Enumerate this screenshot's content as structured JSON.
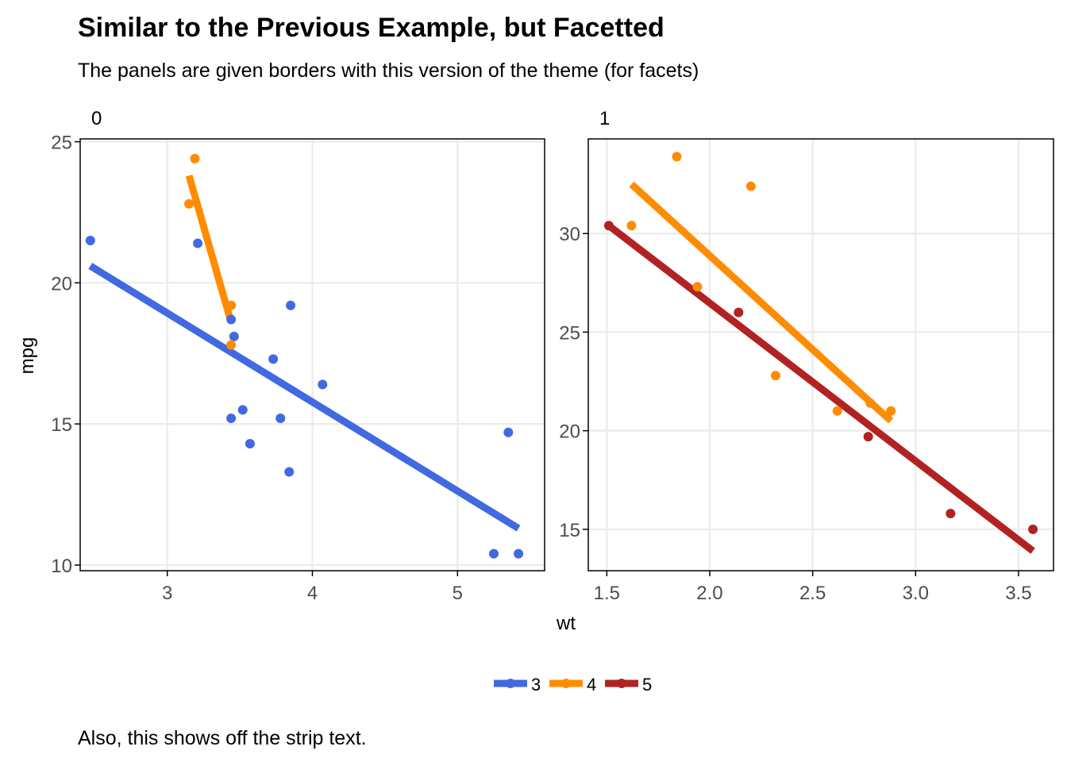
{
  "chart_data": {
    "type": "scatter",
    "title": "Similar to the Previous Example, but Facetted",
    "subtitle": "The panels are given borders with this version of the theme (for facets)",
    "caption": "Also, this shows off the strip text.",
    "xlabel": "wt",
    "ylabel": "mpg",
    "legend": {
      "placement": "bottom",
      "entries": [
        {
          "name": "3",
          "color": "#4169E1"
        },
        {
          "name": "4",
          "color": "#FF8C00"
        },
        {
          "name": "5",
          "color": "#B22222"
        }
      ]
    },
    "grid": true,
    "panels": [
      {
        "strip": "0",
        "xlim": [
          2.4,
          5.6
        ],
        "ylim": [
          9.8,
          25.1
        ],
        "x_ticks": [
          3,
          4,
          5
        ],
        "x_tick_labels": [
          "3",
          "4",
          "5"
        ],
        "y_ticks": [
          10,
          15,
          20,
          25
        ],
        "y_tick_labels": [
          "10",
          "15",
          "20",
          "25"
        ],
        "series": [
          {
            "name": "3",
            "color": "#4169E1",
            "points": [
              [
                2.47,
                21.5
              ],
              [
                3.21,
                21.4
              ],
              [
                3.44,
                18.7
              ],
              [
                3.46,
                18.1
              ],
              [
                3.57,
                14.3
              ],
              [
                3.44,
                15.2
              ],
              [
                3.52,
                15.5
              ],
              [
                3.78,
                15.2
              ],
              [
                3.84,
                13.3
              ],
              [
                3.85,
                19.2
              ],
              [
                3.73,
                17.3
              ],
              [
                4.07,
                16.4
              ],
              [
                5.25,
                10.4
              ],
              [
                5.42,
                10.4
              ],
              [
                5.35,
                14.7
              ]
            ],
            "fit": [
              [
                2.47,
                20.6
              ],
              [
                5.42,
                11.3
              ]
            ]
          },
          {
            "name": "4",
            "color": "#FF8C00",
            "points": [
              [
                3.15,
                22.8
              ],
              [
                3.19,
                24.4
              ],
              [
                3.44,
                19.2
              ],
              [
                3.44,
                17.8
              ]
            ],
            "fit": [
              [
                3.15,
                23.8
              ],
              [
                3.44,
                18.6
              ]
            ]
          }
        ]
      },
      {
        "strip": "1",
        "xlim": [
          1.41,
          3.67
        ],
        "ylim": [
          12.9,
          34.8
        ],
        "x_ticks": [
          1.5,
          2.0,
          2.5,
          3.0,
          3.5
        ],
        "x_tick_labels": [
          "1.5",
          "2.0",
          "2.5",
          "3.0",
          "3.5"
        ],
        "y_ticks": [
          15,
          20,
          25,
          30
        ],
        "y_tick_labels": [
          "15",
          "20",
          "25",
          "30"
        ],
        "series": [
          {
            "name": "4",
            "color": "#FF8C00",
            "points": [
              [
                1.62,
                30.4
              ],
              [
                1.84,
                33.9
              ],
              [
                2.2,
                32.4
              ],
              [
                1.94,
                27.3
              ],
              [
                2.32,
                22.8
              ],
              [
                2.62,
                21.0
              ],
              [
                2.78,
                21.4
              ],
              [
                2.88,
                21.0
              ]
            ],
            "fit": [
              [
                1.62,
                32.5
              ],
              [
                2.88,
                20.5
              ]
            ]
          },
          {
            "name": "5",
            "color": "#B22222",
            "points": [
              [
                1.51,
                30.4
              ],
              [
                2.14,
                26.0
              ],
              [
                2.77,
                19.7
              ],
              [
                3.17,
                15.8
              ],
              [
                3.57,
                15.0
              ]
            ],
            "fit": [
              [
                1.51,
                30.4
              ],
              [
                3.57,
                13.9
              ]
            ]
          }
        ]
      }
    ]
  }
}
